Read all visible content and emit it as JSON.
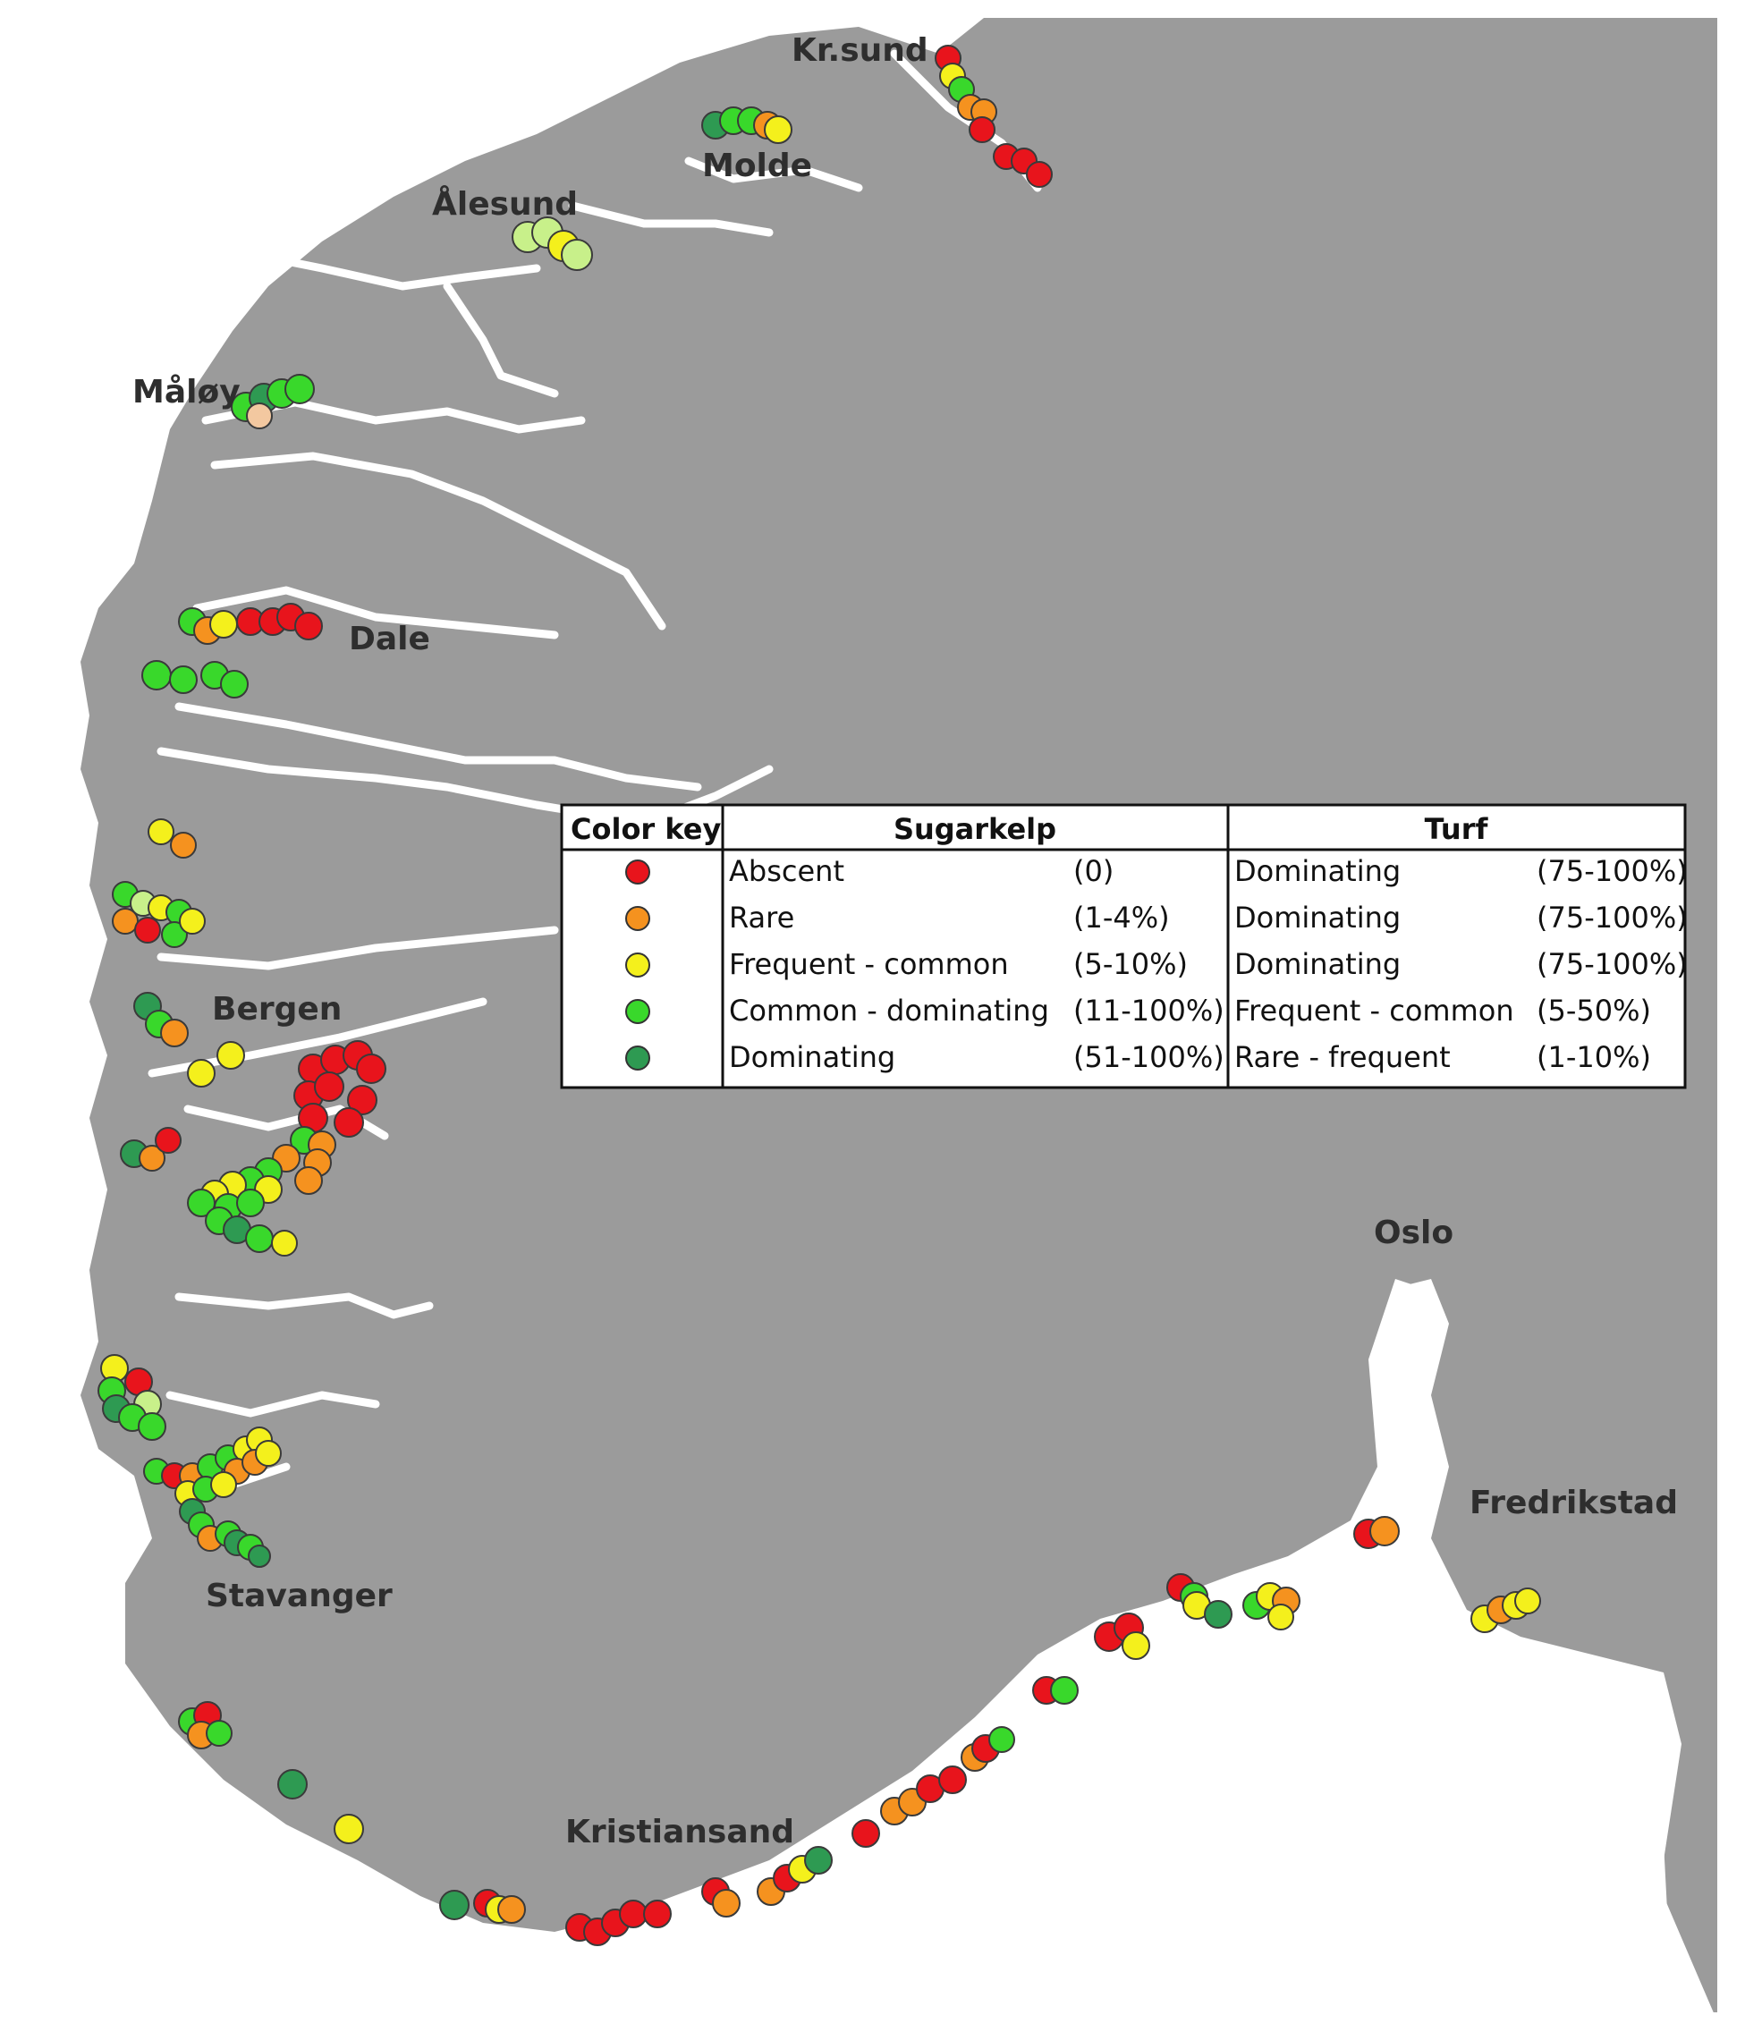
{
  "map": {
    "land_color": "#9b9b9b",
    "water_color": "#ffffff",
    "places": [
      "Kr.sund",
      "Molde",
      "Ålesund",
      "Måløy",
      "Dale",
      "Bergen",
      "Stavanger",
      "Kristiansand",
      "Oslo",
      "Fredrikstad"
    ]
  },
  "color_key": {
    "headers": {
      "key": "Color key",
      "sugarkelp": "Sugarkelp",
      "turf": "Turf"
    },
    "rows": [
      {
        "color": "#e8141c",
        "sugar_label": "Abscent",
        "sugar_range": "(0)",
        "turf_label": "Dominating",
        "turf_range": "(75-100%)"
      },
      {
        "color": "#f5921f",
        "sugar_label": "Rare",
        "sugar_range": "(1-4%)",
        "turf_label": "Dominating",
        "turf_range": "(75-100%)"
      },
      {
        "color": "#f4f01c",
        "sugar_label": "Frequent - common",
        "sugar_range": "(5-10%)",
        "turf_label": "Dominating",
        "turf_range": "(75-100%)"
      },
      {
        "color": "#39d82b",
        "sugar_label": "Common - dominating",
        "sugar_range": "(11-100%)",
        "turf_label": "Frequent - common",
        "turf_range": "(5-50%)"
      },
      {
        "color": "#2e9a52",
        "sugar_label": "Dominating",
        "sugar_range": "(51-100%)",
        "turf_label": "Rare - frequent",
        "turf_range": "(1-10%)"
      }
    ]
  }
}
